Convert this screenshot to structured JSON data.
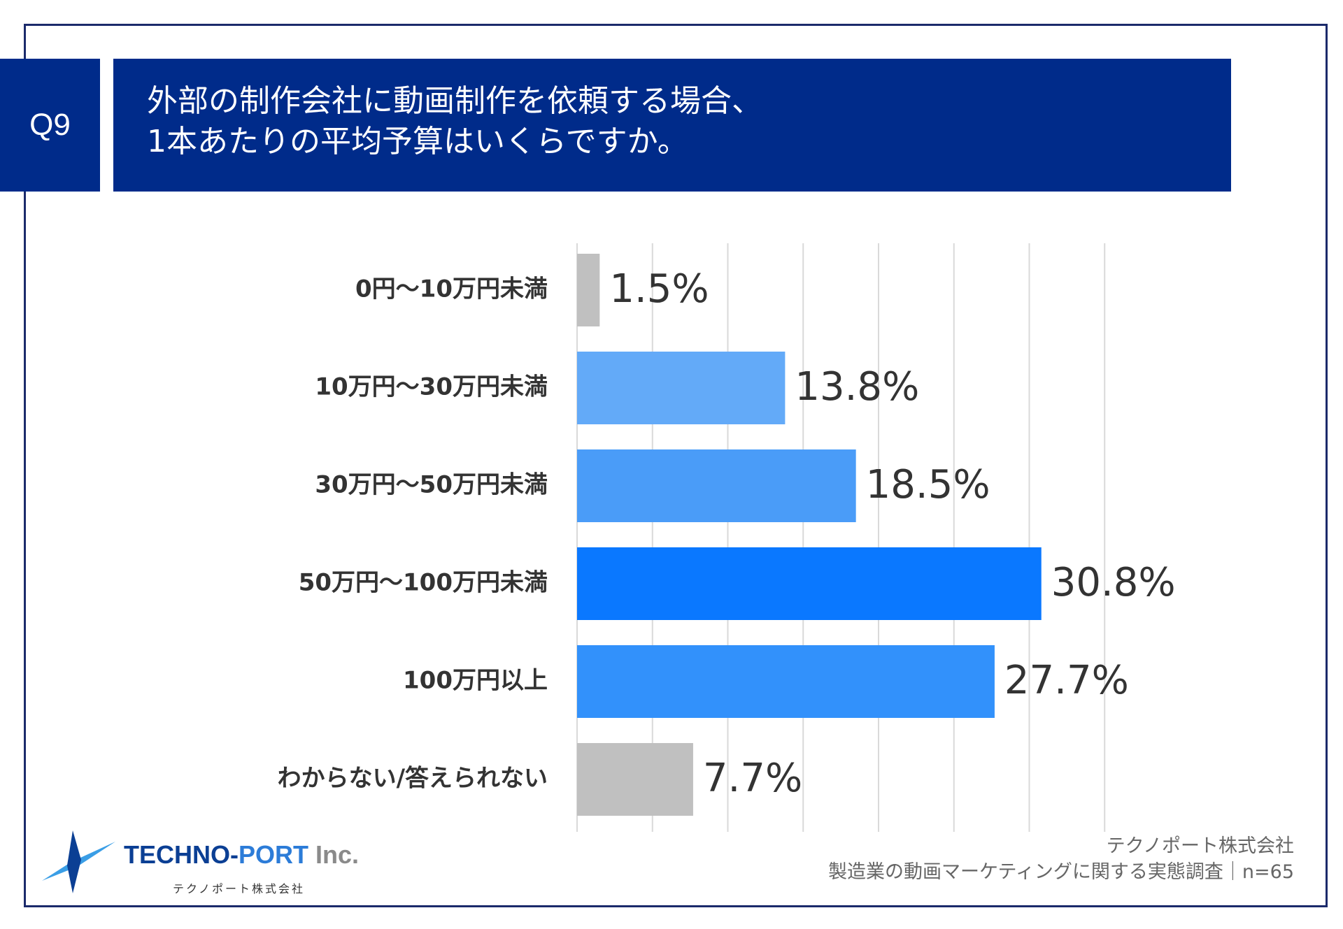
{
  "question": {
    "number": "Q9",
    "title_line1": "外部の制作会社に動画制作を依頼する場合、",
    "title_line2": "1本あたりの平均予算はいくらですか。"
  },
  "colors": {
    "header_bg": "#002b8a",
    "frame": "#1b2a6b",
    "gray_bar": "#c0c0c0"
  },
  "chart_data": {
    "type": "bar",
    "orientation": "horizontal",
    "title": "",
    "xlabel": "",
    "ylabel": "",
    "xlim": [
      0,
      35
    ],
    "grid": true,
    "categories": [
      "0円〜10万円未満",
      "10万円〜30万円未満",
      "30万円〜50万円未満",
      "50万円〜100万円未満",
      "100万円以上",
      "わからない/答えられない"
    ],
    "values": [
      1.5,
      13.8,
      18.5,
      30.8,
      27.7,
      7.7
    ],
    "value_labels": [
      "1.5%",
      "13.8%",
      "18.5%",
      "30.8%",
      "27.7%",
      "7.7%"
    ],
    "bar_colors": [
      "#c0c0c0",
      "#63aaf8",
      "#4a9cf8",
      "#0a78ff",
      "#3291fb",
      "#c0c0c0"
    ]
  },
  "logo": {
    "name_part1": "TECHNO-",
    "name_part2": "PORT",
    "name_part3": " Inc.",
    "subtitle": "テクノポート株式会社"
  },
  "footer": {
    "company": "テクノポート株式会社",
    "survey": "製造業の動画マーケティングに関する実態調査｜n=65"
  }
}
